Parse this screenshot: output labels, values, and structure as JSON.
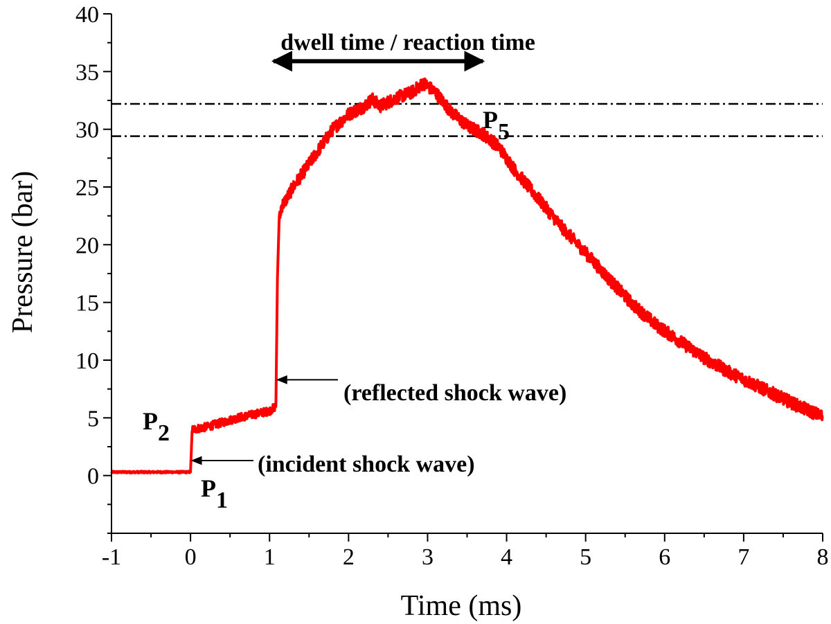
{
  "chart_data": {
    "type": "line",
    "title": "",
    "xlabel": "Time (ms)",
    "ylabel": "Pressure (bar)",
    "xlim": [
      -1,
      8
    ],
    "ylim": [
      -5,
      40
    ],
    "x_ticks": [
      -1,
      0,
      1,
      2,
      3,
      4,
      5,
      6,
      7,
      8
    ],
    "x_tick_labels": [
      "-1",
      "0",
      "1",
      "2",
      "3",
      "4",
      "5",
      "6",
      "7",
      "8"
    ],
    "y_ticks": [
      0,
      5,
      10,
      15,
      20,
      25,
      30,
      35,
      40
    ],
    "y_tick_labels": [
      "0",
      "5",
      "10",
      "15",
      "20",
      "25",
      "30",
      "35",
      "40"
    ],
    "series_color": "#ff0000",
    "series": [
      {
        "name": "pressure",
        "x": [
          -1,
          -0.5,
          -0.01,
          0.0,
          0.02,
          0.2,
          0.4,
          0.6,
          0.8,
          1.0,
          1.08,
          1.1,
          1.12,
          1.15,
          1.2,
          1.3,
          1.4,
          1.6,
          1.8,
          2.0,
          2.2,
          2.3,
          2.4,
          2.6,
          2.8,
          2.95,
          3.1,
          3.3,
          3.5,
          3.7,
          3.9,
          4.1,
          4.4,
          4.7,
          5.0,
          5.3,
          5.6,
          5.9,
          6.2,
          6.5,
          6.8,
          7.1,
          7.4,
          7.7,
          8.0
        ],
        "y": [
          0.3,
          0.3,
          0.3,
          0.3,
          4.0,
          4.2,
          4.6,
          5.0,
          5.3,
          5.6,
          6.0,
          17.0,
          22.0,
          23.3,
          23.8,
          25.0,
          26.0,
          28.0,
          30.0,
          31.3,
          32.0,
          32.6,
          32.0,
          32.7,
          33.2,
          34.0,
          33.2,
          31.5,
          30.3,
          29.6,
          28.5,
          26.5,
          24.0,
          21.5,
          19.3,
          17.0,
          14.8,
          13.0,
          11.6,
          10.2,
          9.0,
          8.0,
          7.0,
          6.0,
          5.1
        ]
      }
    ],
    "reference_lines": [
      {
        "name": "upper dash-dot line",
        "y": 32.2
      },
      {
        "name": "lower dash-dot line",
        "y": 29.4
      }
    ],
    "annotations": {
      "dwell": {
        "text": "dwell time / reaction time",
        "x_start": 1.05,
        "x_end": 3.7,
        "y": 35.9
      },
      "reflected": {
        "text": "(reflected shock wave)",
        "arrow_to_x": 1.08,
        "arrow_to_y": 8.3
      },
      "incident": {
        "text": "(incident shock wave)",
        "arrow_to_x": 0.0,
        "arrow_to_y": 1.3
      },
      "p1": {
        "main": "P",
        "sub": "1"
      },
      "p2": {
        "main": "P",
        "sub": "2"
      },
      "p5": {
        "main": "P",
        "sub": "5"
      }
    }
  }
}
